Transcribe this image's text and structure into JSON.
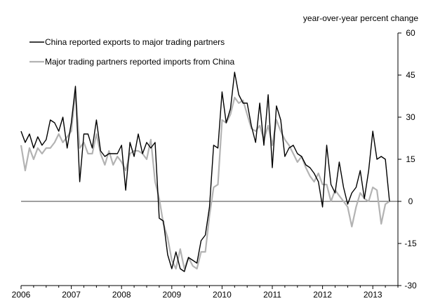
{
  "chart_data": {
    "type": "line",
    "title": "",
    "xlabel": "",
    "ylabel": "year-over-year percent change",
    "ylim": [
      -30,
      60
    ],
    "y_axis_side": "right",
    "yticks": [
      -30,
      -15,
      0,
      15,
      30,
      45,
      60
    ],
    "xlim": [
      2006.0,
      2013.5
    ],
    "xticks": [
      "2006",
      "2007",
      "2008",
      "2009",
      "2010",
      "2011",
      "2012",
      "2013"
    ],
    "grid": false,
    "zero_line": true,
    "legend_position": "top-left",
    "colors": {
      "series_0": "#000000",
      "series_1": "#b3b3b3"
    },
    "series": [
      {
        "name": "China reported exports to major trading partners",
        "x": [
          2006.0,
          2006.083,
          2006.167,
          2006.25,
          2006.333,
          2006.417,
          2006.5,
          2006.583,
          2006.667,
          2006.75,
          2006.833,
          2006.917,
          2007.0,
          2007.083,
          2007.167,
          2007.25,
          2007.333,
          2007.417,
          2007.5,
          2007.583,
          2007.667,
          2007.75,
          2007.833,
          2007.917,
          2008.0,
          2008.083,
          2008.167,
          2008.25,
          2008.333,
          2008.417,
          2008.5,
          2008.583,
          2008.667,
          2008.75,
          2008.833,
          2008.917,
          2009.0,
          2009.083,
          2009.167,
          2009.25,
          2009.333,
          2009.417,
          2009.5,
          2009.583,
          2009.667,
          2009.75,
          2009.833,
          2009.917,
          2010.0,
          2010.083,
          2010.167,
          2010.25,
          2010.333,
          2010.417,
          2010.5,
          2010.583,
          2010.667,
          2010.75,
          2010.833,
          2010.917,
          2011.0,
          2011.083,
          2011.167,
          2011.25,
          2011.333,
          2011.417,
          2011.5,
          2011.583,
          2011.667,
          2011.75,
          2011.833,
          2011.917,
          2012.0,
          2012.083,
          2012.167,
          2012.25,
          2012.333,
          2012.417,
          2012.5,
          2012.583,
          2012.667,
          2012.75,
          2012.833,
          2012.917,
          2013.0,
          2013.083,
          2013.167,
          2013.25,
          2013.333
        ],
        "values": [
          25,
          21,
          24,
          19,
          23,
          20,
          22,
          29,
          28,
          25,
          30,
          19,
          28,
          41,
          7,
          24,
          24,
          19,
          29,
          18,
          16,
          17,
          17,
          17,
          20,
          4,
          21,
          16,
          24,
          17,
          21,
          19,
          21,
          -6,
          -7,
          -19,
          -24,
          -18,
          -24,
          -25,
          -20,
          -21,
          -22,
          -14,
          -12,
          -2,
          20,
          19,
          39,
          28,
          33,
          46,
          38,
          35,
          35,
          27,
          21,
          35,
          20,
          38,
          12,
          34,
          29,
          16,
          19,
          20,
          17,
          16,
          13,
          12,
          10,
          7,
          -2,
          20,
          6,
          3,
          14,
          5,
          -1,
          3,
          5,
          11,
          1,
          11,
          25,
          15,
          16,
          15,
          0
        ]
      },
      {
        "name": "Major trading partners reported imports from China",
        "x": [
          2006.0,
          2006.083,
          2006.167,
          2006.25,
          2006.333,
          2006.417,
          2006.5,
          2006.583,
          2006.667,
          2006.75,
          2006.833,
          2006.917,
          2007.0,
          2007.083,
          2007.167,
          2007.25,
          2007.333,
          2007.417,
          2007.5,
          2007.583,
          2007.667,
          2007.75,
          2007.833,
          2007.917,
          2008.0,
          2008.083,
          2008.167,
          2008.25,
          2008.333,
          2008.417,
          2008.5,
          2008.583,
          2008.667,
          2008.75,
          2008.833,
          2008.917,
          2009.0,
          2009.083,
          2009.167,
          2009.25,
          2009.333,
          2009.417,
          2009.5,
          2009.583,
          2009.667,
          2009.75,
          2009.833,
          2009.917,
          2010.0,
          2010.083,
          2010.167,
          2010.25,
          2010.333,
          2010.417,
          2010.5,
          2010.583,
          2010.667,
          2010.75,
          2010.833,
          2010.917,
          2011.0,
          2011.083,
          2011.167,
          2011.25,
          2011.333,
          2011.417,
          2011.5,
          2011.583,
          2011.667,
          2011.75,
          2011.833,
          2011.917,
          2012.0,
          2012.083,
          2012.167,
          2012.25,
          2012.333,
          2012.417,
          2012.5,
          2012.583,
          2012.667,
          2012.75,
          2012.833,
          2012.917,
          2013.0,
          2013.083,
          2013.167,
          2013.25,
          2013.333
        ],
        "values": [
          20,
          11,
          19,
          15,
          19,
          17,
          19,
          19,
          21,
          24,
          21,
          23,
          25,
          39,
          19,
          21,
          17,
          17,
          24,
          17,
          13,
          18,
          13,
          16,
          14,
          11,
          17,
          18,
          18,
          17,
          15,
          22,
          7,
          1,
          -8,
          -13,
          -21,
          -24,
          -17,
          -24,
          -20,
          -23,
          -24,
          -18,
          -18,
          -5,
          5,
          6,
          29,
          28,
          31,
          37,
          35,
          36,
          31,
          26,
          25,
          27,
          22,
          27,
          20,
          29,
          25,
          22,
          20,
          17,
          14,
          16,
          12,
          9,
          7,
          10,
          6,
          6,
          0,
          4,
          2,
          0,
          -2,
          -9,
          -2,
          3,
          1,
          0,
          5,
          4,
          -8,
          -1,
          0
        ]
      }
    ]
  }
}
